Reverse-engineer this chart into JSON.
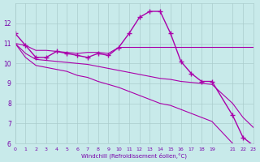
{
  "xlabel": "Windchill (Refroidissement éolien,°C)",
  "bg_color": "#c8eaea",
  "line_color": "#aa00aa",
  "grid_color": "#aacccc",
  "axis_color": "#7700aa",
  "line1_x": [
    0,
    1,
    2,
    3,
    4,
    5,
    6,
    7,
    8,
    9,
    10,
    11,
    12,
    13,
    14,
    15,
    16,
    17,
    18,
    19,
    21,
    22,
    23
  ],
  "line1_y": [
    11.5,
    10.9,
    10.3,
    10.3,
    10.6,
    10.5,
    10.4,
    10.3,
    10.5,
    10.4,
    10.8,
    11.5,
    12.3,
    12.6,
    12.6,
    11.5,
    10.1,
    9.5,
    9.1,
    9.1,
    7.4,
    6.3,
    5.9
  ],
  "line2_x": [
    0,
    1,
    2,
    3,
    4,
    5,
    6,
    7,
    8,
    9,
    10,
    11,
    12,
    13,
    14,
    15,
    16,
    17,
    18,
    19,
    21,
    22,
    23
  ],
  "line2_y": [
    11.0,
    10.9,
    10.65,
    10.65,
    10.6,
    10.55,
    10.5,
    10.55,
    10.55,
    10.5,
    10.8,
    10.8,
    10.8,
    10.8,
    10.8,
    10.8,
    10.8,
    10.8,
    10.8,
    10.8,
    10.8,
    10.8,
    10.8
  ],
  "line3_x": [
    0,
    1,
    2,
    3,
    4,
    5,
    6,
    7,
    8,
    9,
    10,
    11,
    12,
    13,
    14,
    15,
    16,
    17,
    18,
    19,
    21,
    22,
    23
  ],
  "line3_y": [
    11.0,
    10.5,
    10.2,
    10.15,
    10.1,
    10.05,
    10.0,
    9.95,
    9.85,
    9.75,
    9.65,
    9.55,
    9.45,
    9.35,
    9.25,
    9.2,
    9.1,
    9.05,
    9.0,
    8.95,
    8.0,
    7.3,
    6.8
  ],
  "line4_x": [
    0,
    1,
    2,
    3,
    4,
    5,
    6,
    7,
    8,
    9,
    10,
    11,
    12,
    13,
    14,
    15,
    16,
    17,
    18,
    19,
    21,
    22,
    23
  ],
  "line4_y": [
    11.0,
    10.3,
    9.9,
    9.8,
    9.7,
    9.6,
    9.4,
    9.3,
    9.1,
    8.95,
    8.8,
    8.6,
    8.4,
    8.2,
    8.0,
    7.9,
    7.7,
    7.5,
    7.3,
    7.1,
    6.0,
    5.5,
    5.0
  ],
  "xlim": [
    0,
    23
  ],
  "ylim": [
    6,
    13
  ],
  "yticks": [
    6,
    7,
    8,
    9,
    10,
    11,
    12
  ],
  "xticks": [
    0,
    1,
    2,
    3,
    4,
    5,
    6,
    7,
    8,
    9,
    10,
    11,
    12,
    13,
    14,
    15,
    16,
    17,
    18,
    19,
    21,
    22,
    23
  ]
}
